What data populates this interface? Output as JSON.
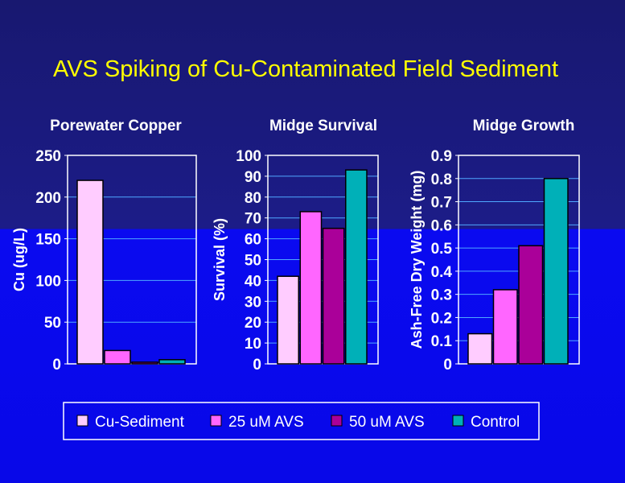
{
  "title": "AVS Spiking of Cu-Contaminated Field Sediment",
  "colors": {
    "title": "#ffff00",
    "text": "#ffffff",
    "gridline": "#4fa8ff"
  },
  "chart_data": [
    {
      "type": "bar",
      "title": "Porewater Copper",
      "ylabel": "Cu (ug/L)",
      "ylim": [
        0,
        250
      ],
      "yticks": [
        "0",
        "50",
        "100",
        "150",
        "200",
        "250"
      ],
      "tick_values": [
        0,
        50,
        100,
        150,
        200,
        250
      ],
      "grid": true,
      "categories": [
        "Cu-Sediment",
        "25 uM AVS",
        "50 uM AVS",
        "Control"
      ],
      "values": [
        220,
        16,
        2,
        5
      ]
    },
    {
      "type": "bar",
      "title": "Midge Survival",
      "ylabel": "Survival (%)",
      "ylim": [
        0,
        100
      ],
      "yticks": [
        "0",
        "10",
        "20",
        "30",
        "40",
        "50",
        "60",
        "70",
        "80",
        "90",
        "100"
      ],
      "tick_values": [
        0,
        10,
        20,
        30,
        40,
        50,
        60,
        70,
        80,
        90,
        100
      ],
      "grid": true,
      "categories": [
        "Cu-Sediment",
        "25 uM AVS",
        "50 uM AVS",
        "Control"
      ],
      "values": [
        42,
        73,
        65,
        93
      ]
    },
    {
      "type": "bar",
      "title": "Midge Growth",
      "ylabel": "Ash-Free Dry Weight (mg)",
      "ylim": [
        0,
        0.9
      ],
      "yticks": [
        "0",
        "0.1",
        "0.2",
        "0.3",
        "0.4",
        "0.5",
        "0.6",
        "0.7",
        "0.8",
        "0.9"
      ],
      "tick_values": [
        0,
        0.1,
        0.2,
        0.3,
        0.4,
        0.5,
        0.6,
        0.7,
        0.8,
        0.9
      ],
      "grid": true,
      "categories": [
        "Cu-Sediment",
        "25 uM AVS",
        "50 uM AVS",
        "Control"
      ],
      "values": [
        0.13,
        0.32,
        0.51,
        0.8
      ]
    }
  ],
  "legend": {
    "placement": "bottom",
    "items": [
      {
        "label": "Cu-Sediment",
        "color": "#ffccff"
      },
      {
        "label": "25 uM AVS",
        "color": "#ff66ff"
      },
      {
        "label": "50 uM AVS",
        "color": "#aa0099"
      },
      {
        "label": "Control",
        "color": "#00b0b8"
      }
    ]
  }
}
